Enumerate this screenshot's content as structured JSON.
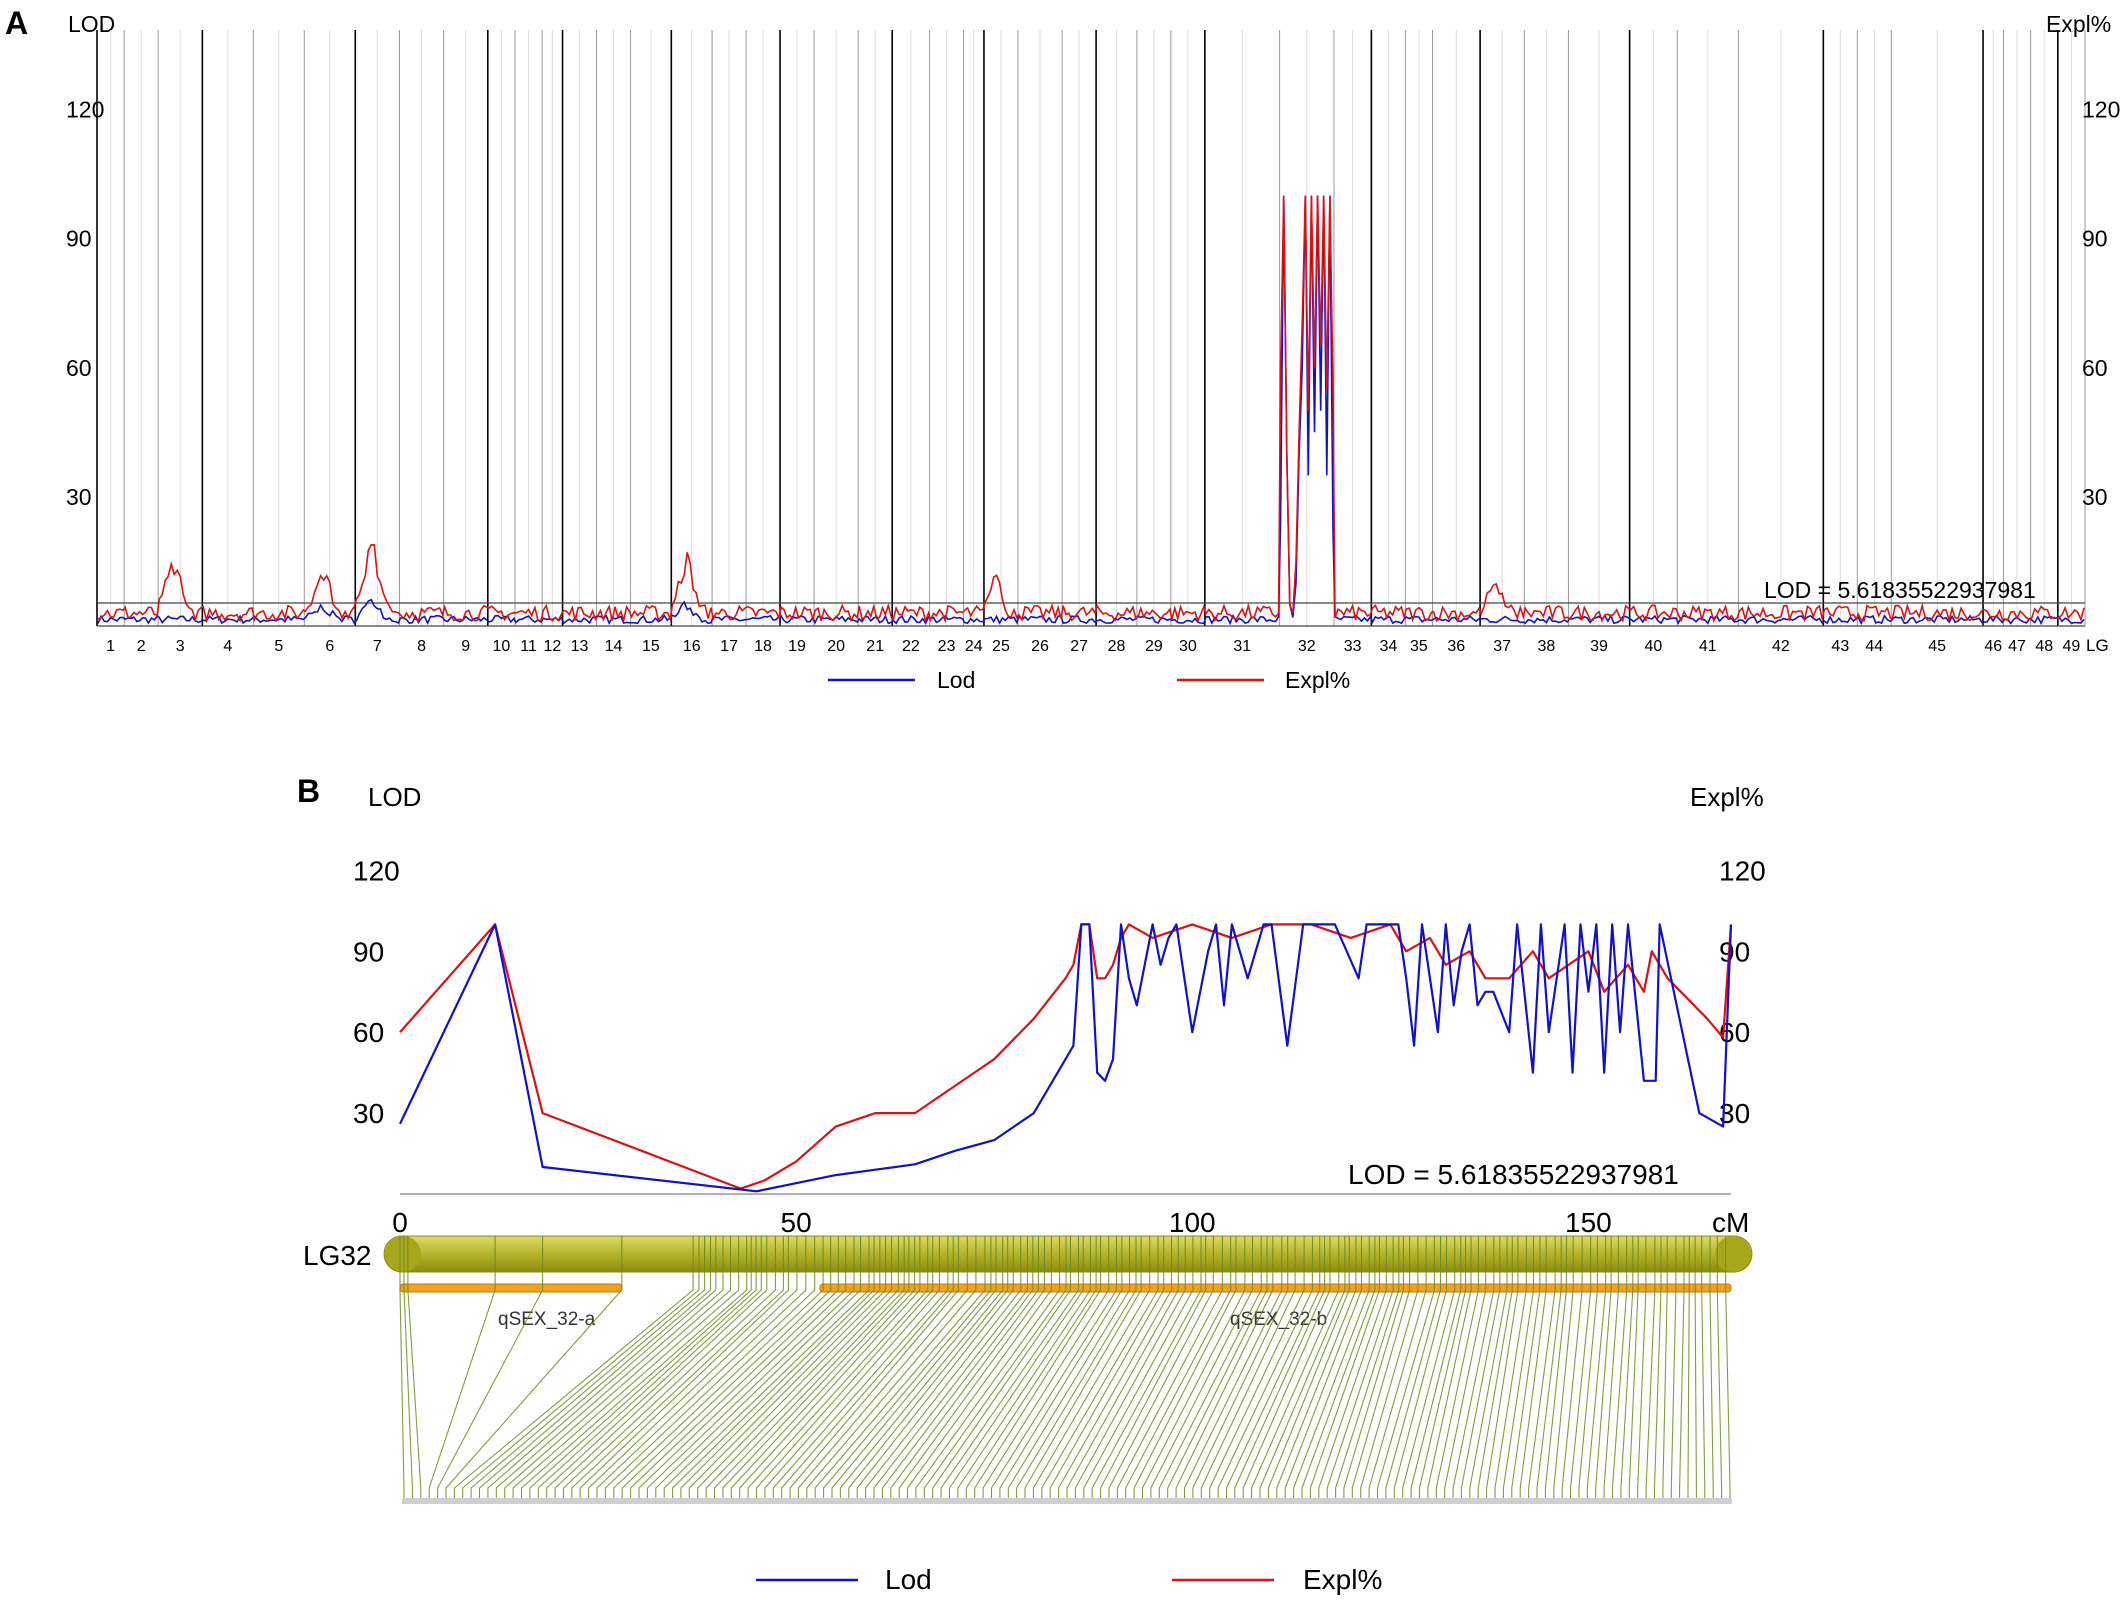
{
  "panel_a": {
    "letter": "A",
    "left_axis_label": "LOD",
    "right_axis_label": "Expl%",
    "lg_axis_label": "LG",
    "threshold_label": "LOD = 5.61835522937981",
    "legend": {
      "lod": "Lod",
      "expl": "Expl%"
    }
  },
  "panel_b": {
    "letter": "B",
    "left_axis_label": "LOD",
    "right_axis_label": "Expl%",
    "x_unit": "cM",
    "threshold_label": "LOD = 5.61835522937981",
    "lg_label": "LG32",
    "qtl_labels": [
      "qSEX_32-a",
      "qSEX_32-b"
    ],
    "legend": {
      "lod": "Lod",
      "expl": "Expl%"
    }
  },
  "colors": {
    "lod": "#1111cc",
    "expl": "#dd1111",
    "chrom": "#b5b42a",
    "marker": "#6e8b1f",
    "qtl": "#f0a21c"
  },
  "chart_data": [
    {
      "type": "line",
      "title": "",
      "xlabel": "LG",
      "ylabel": "LOD",
      "ylabel_right": "Expl%",
      "ylim": [
        0,
        135
      ],
      "yticks": [
        30,
        60,
        90,
        120
      ],
      "linkage_groups": [
        "1",
        "2",
        "3",
        "4",
        "5",
        "6",
        "7",
        "8",
        "9",
        "10",
        "11",
        "12",
        "13",
        "14",
        "15",
        "16",
        "17",
        "18",
        "19",
        "20",
        "21",
        "22",
        "23",
        "24",
        "25",
        "26",
        "27",
        "28",
        "29",
        "30",
        "31",
        "32",
        "33",
        "34",
        "35",
        "36",
        "37",
        "38",
        "39",
        "40",
        "41",
        "42",
        "43",
        "44",
        "45",
        "46",
        "47",
        "48",
        "49"
      ],
      "threshold": 5.61835522937981,
      "series": [
        {
          "name": "Lod",
          "lg32_values": [
            25,
            100,
            40,
            5,
            2,
            10,
            40,
            60,
            100,
            35,
            100,
            45,
            100,
            50,
            100,
            35,
            100,
            22
          ],
          "baseline": 1.5,
          "peaks": {
            "6": 3,
            "7": 5,
            "16": 4
          }
        },
        {
          "name": "Expl%",
          "lg32_values": [
            60,
            100,
            40,
            5,
            3,
            15,
            45,
            70,
            100,
            50,
            100,
            60,
            100,
            65,
            100,
            55,
            100,
            55
          ],
          "baseline": 3,
          "peaks": {
            "3": 12,
            "6": 10,
            "7": 17,
            "16": 14,
            "25": 10,
            "37": 7
          }
        }
      ]
    },
    {
      "type": "line",
      "title": "",
      "xlabel": "cM",
      "ylabel": "LOD",
      "ylabel_right": "Expl%",
      "xlim": [
        0,
        168
      ],
      "ylim": [
        0,
        135
      ],
      "xticks": [
        0,
        50,
        100,
        150
      ],
      "yticks": [
        30,
        60,
        90,
        120
      ],
      "threshold": 5.61835522937981,
      "series": [
        {
          "name": "Lod",
          "x": [
            0,
            12,
            18,
            45,
            50,
            55,
            60,
            65,
            70,
            75,
            80,
            83,
            85,
            86,
            87,
            88,
            89,
            90,
            91,
            92,
            93,
            95,
            96,
            97,
            98,
            100,
            102,
            103,
            104,
            105,
            107,
            109,
            110,
            112,
            114,
            118,
            121,
            122,
            124,
            126,
            127,
            128,
            129,
            131,
            132,
            133,
            134,
            135,
            136,
            137,
            138,
            140,
            141,
            143,
            144,
            145,
            147,
            148,
            149,
            150,
            151,
            152,
            153,
            154,
            155,
            157,
            158,
            158.5,
            159,
            164,
            167,
            168
          ],
          "y": [
            26,
            100,
            10,
            1,
            4,
            7,
            9,
            11,
            16,
            20,
            30,
            45,
            55,
            100,
            100,
            45,
            42,
            50,
            100,
            80,
            70,
            100,
            85,
            95,
            100,
            60,
            90,
            100,
            70,
            100,
            80,
            100,
            100,
            55,
            100,
            100,
            80,
            100,
            100,
            100,
            80,
            55,
            100,
            60,
            100,
            70,
            90,
            100,
            70,
            75,
            75,
            60,
            100,
            45,
            100,
            60,
            100,
            45,
            100,
            75,
            100,
            45,
            100,
            60,
            100,
            42,
            42,
            42,
            100,
            30,
            25,
            100
          ]
        },
        {
          "name": "Expl%",
          "x": [
            0,
            12,
            18,
            43,
            46,
            50,
            55,
            60,
            65,
            70,
            75,
            80,
            84,
            85,
            86,
            87,
            88,
            89,
            90,
            91,
            92,
            95,
            100,
            105,
            110,
            115,
            120,
            125,
            127,
            130,
            132,
            135,
            137,
            140,
            143,
            145,
            150,
            152,
            155,
            157,
            158,
            160,
            165,
            167,
            168
          ],
          "y": [
            60,
            100,
            30,
            2,
            5,
            12,
            25,
            30,
            30,
            40,
            50,
            65,
            80,
            85,
            100,
            100,
            80,
            80,
            85,
            95,
            100,
            95,
            100,
            95,
            100,
            100,
            95,
            100,
            90,
            95,
            85,
            90,
            80,
            80,
            90,
            80,
            90,
            75,
            85,
            75,
            90,
            80,
            65,
            58,
            100
          ]
        }
      ],
      "qtl": [
        {
          "name": "qSEX_32-a",
          "start": 0,
          "end": 28
        },
        {
          "name": "qSEX_32-b",
          "start": 53,
          "end": 168
        }
      ]
    }
  ]
}
